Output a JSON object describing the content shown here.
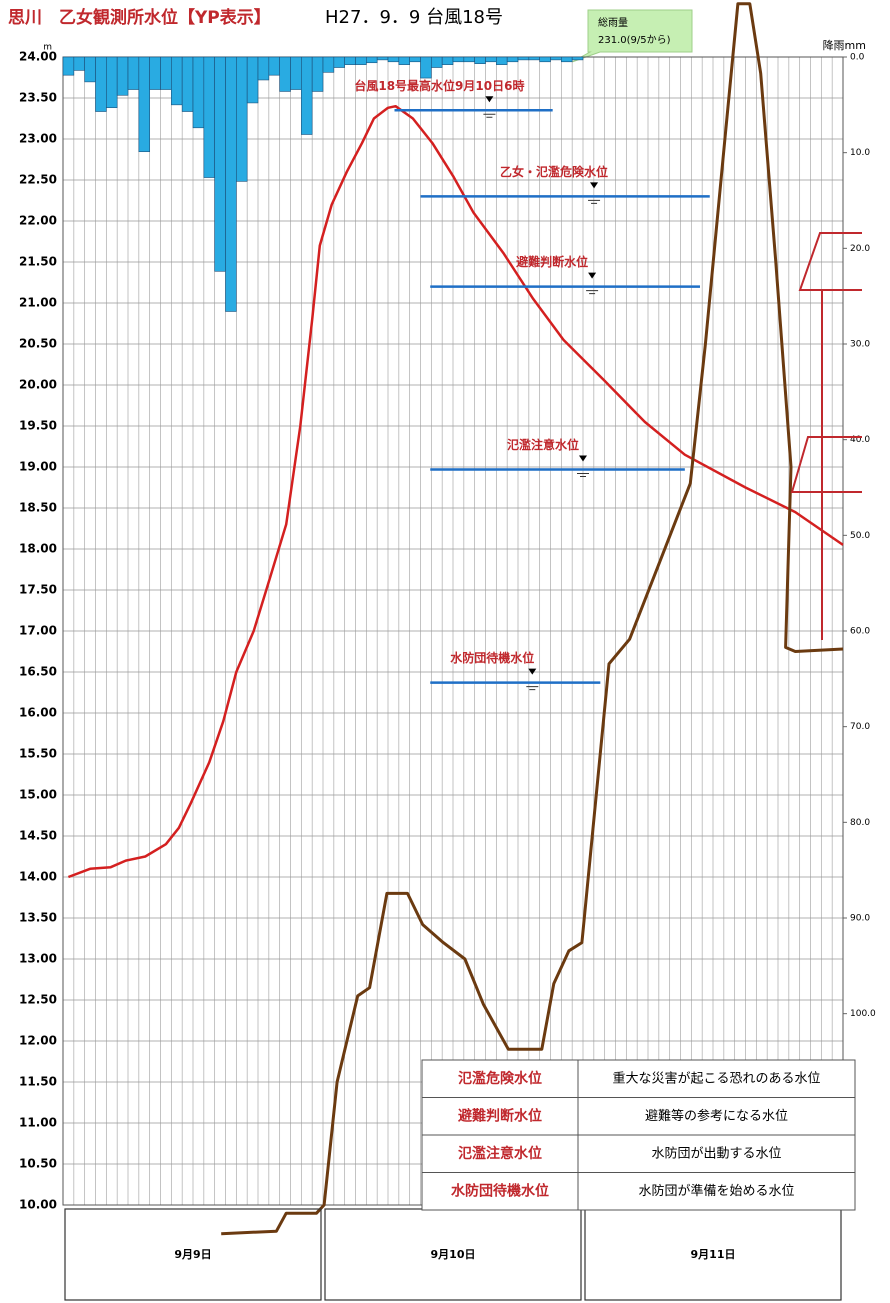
{
  "chart_data": {
    "type": "combo",
    "title": "思川　乙女観測所水位【YP表示】",
    "subtitle": "H27．9．9 台風18号",
    "y_unit": "m",
    "y2_label": "降雨mm",
    "rain_note": [
      "総雨量",
      "231.0(9/5から)"
    ],
    "xlim": [
      0,
      72
    ],
    "xticks": [
      0,
      1,
      2,
      3,
      4,
      5,
      6,
      7,
      8,
      9,
      10,
      11,
      12,
      13,
      14,
      15,
      16,
      17,
      18,
      19,
      20,
      21,
      22,
      23,
      24,
      25,
      26,
      27,
      28,
      29,
      30,
      31,
      32,
      33,
      34,
      35,
      36,
      37,
      38,
      39,
      40,
      41,
      42,
      43,
      44,
      45,
      46,
      47,
      48,
      49,
      50,
      51,
      52,
      53,
      54,
      55,
      56,
      57,
      58,
      59,
      60,
      61,
      62,
      63,
      64,
      65,
      66,
      67,
      68,
      69,
      70,
      71,
      72
    ],
    "ylim": [
      10,
      24
    ],
    "yticks": [
      {
        "value": 10,
        "label": "10.00"
      },
      {
        "value": 10.5,
        "label": "10.50"
      },
      {
        "value": 11,
        "label": "11.00"
      },
      {
        "value": 11.5,
        "label": "11.50"
      },
      {
        "value": 12,
        "label": "12.00"
      },
      {
        "value": 12.5,
        "label": "12.50"
      },
      {
        "value": 13,
        "label": "13.00"
      },
      {
        "value": 13.5,
        "label": "13.50"
      },
      {
        "value": 14,
        "label": "14.00"
      },
      {
        "value": 14.5,
        "label": "14.50"
      },
      {
        "value": 15,
        "label": "15.00"
      },
      {
        "value": 15.5,
        "label": "15.50"
      },
      {
        "value": 16,
        "label": "16.00"
      },
      {
        "value": 16.5,
        "label": "16.50"
      },
      {
        "value": 17,
        "label": "17.00"
      },
      {
        "value": 17.5,
        "label": "17.50"
      },
      {
        "value": 18,
        "label": "18.00"
      },
      {
        "value": 18.5,
        "label": "18.50"
      },
      {
        "value": 19,
        "label": "19.00"
      },
      {
        "value": 19.5,
        "label": "19.50"
      },
      {
        "value": 20,
        "label": "20.00"
      },
      {
        "value": 20.5,
        "label": "20.50"
      },
      {
        "value": 21,
        "label": "21.00"
      },
      {
        "value": 21.5,
        "label": "21.50"
      },
      {
        "value": 22,
        "label": "22.00"
      },
      {
        "value": 22.5,
        "label": "22.50"
      },
      {
        "value": 23,
        "label": "23.00"
      },
      {
        "value": 23.5,
        "label": "23.50"
      },
      {
        "value": 24,
        "label": "24.00"
      }
    ],
    "y2lim": [
      0,
      120
    ],
    "y2_inverted": true,
    "y2ticks": [
      {
        "value": 0,
        "label": "0.0"
      },
      {
        "value": 10,
        "label": "10.0"
      },
      {
        "value": 20,
        "label": "20.0"
      },
      {
        "value": 30,
        "label": "30.0"
      },
      {
        "value": 40,
        "label": "40.0"
      },
      {
        "value": 50,
        "label": "50.0"
      },
      {
        "value": 60,
        "label": "60.0"
      },
      {
        "value": 70,
        "label": "70.0"
      },
      {
        "value": 80,
        "label": "80.0"
      },
      {
        "value": 90,
        "label": "90.0"
      },
      {
        "value": 100,
        "label": "100.0"
      }
    ],
    "grid": true,
    "days": [
      {
        "label": "9月9日",
        "start": 0,
        "end": 24
      },
      {
        "label": "9月10日",
        "start": 24,
        "end": 48
      },
      {
        "label": "9月11日",
        "start": 48,
        "end": 72
      }
    ],
    "series": [
      {
        "kind": "bar",
        "axis": "y2",
        "color": "#29abe2",
        "x": [
          0,
          1,
          2,
          3,
          4,
          5,
          6,
          7,
          8,
          9,
          10,
          11,
          12,
          13,
          14,
          15,
          16,
          17,
          18,
          19,
          20,
          21,
          22,
          23,
          24,
          25,
          26,
          27,
          28,
          29,
          30,
          31,
          32,
          33,
          34,
          35,
          36,
          37,
          38,
          39,
          40,
          41,
          42,
          43,
          44,
          45,
          46,
          47
        ],
        "values": [
          1.9,
          1.4,
          2.6,
          5.7,
          5.3,
          4.0,
          3.4,
          9.9,
          3.4,
          3.4,
          5.0,
          5.7,
          7.4,
          12.6,
          22.4,
          26.6,
          13.0,
          4.8,
          2.4,
          1.9,
          3.6,
          3.4,
          8.1,
          3.6,
          1.6,
          1.1,
          0.8,
          0.8,
          0.6,
          0.3,
          0.5,
          0.8,
          0.5,
          2.2,
          1.1,
          0.8,
          0.5,
          0.5,
          0.7,
          0.5,
          0.8,
          0.5,
          0.3,
          0.3,
          0.5,
          0.3,
          0.5,
          0.3
        ]
      },
      {
        "kind": "line",
        "color": "#d42020",
        "width": 2.5,
        "x": [
          0.5,
          2.5,
          4.4,
          5.8,
          7.6,
          9.5,
          10.7,
          11.8,
          13.5,
          14.8,
          16,
          17.6,
          19,
          20.6,
          21.9,
          23,
          23.7,
          24.8,
          26.2,
          27.6,
          28.7,
          30,
          30.7,
          32.3,
          34.1,
          36,
          37.9,
          40.7,
          43.4,
          46.2,
          50,
          53.7,
          57.4,
          63,
          67.6,
          72
        ],
        "values": [
          14.0,
          14.1,
          14.12,
          14.2,
          14.25,
          14.4,
          14.6,
          14.9,
          15.4,
          15.9,
          16.5,
          17.0,
          17.6,
          18.3,
          19.5,
          20.8,
          21.7,
          22.2,
          22.6,
          22.95,
          23.25,
          23.38,
          23.4,
          23.25,
          22.95,
          22.55,
          22.1,
          21.6,
          21.05,
          20.55,
          20.05,
          19.55,
          19.15,
          18.75,
          18.45,
          18.05
        ]
      },
      {
        "kind": "line",
        "color": "#6b3a10",
        "width": 3,
        "x": [
          14.6,
          19.7,
          20.6,
          23.4,
          24.1,
          25.3,
          27.2,
          28.3,
          29.9,
          31.8,
          33.2,
          35.1,
          37.1,
          38.8,
          41.1,
          44.2,
          45.3,
          46.7,
          47.9,
          50.4,
          52.3,
          57.9,
          59.3,
          61.1,
          62.3,
          63.4,
          64.4,
          65.8,
          67.2,
          66.7,
          67.6,
          72
        ],
        "values": [
          9.65,
          9.68,
          9.9,
          9.9,
          10.0,
          11.5,
          12.55,
          12.65,
          13.8,
          13.8,
          13.42,
          13.2,
          13.0,
          12.45,
          11.9,
          11.9,
          12.7,
          13.1,
          13.2,
          16.6,
          16.9,
          18.8,
          20.5,
          23.0,
          24.65,
          24.65,
          23.8,
          21.5,
          19.0,
          16.8,
          16.75,
          16.78
        ]
      }
    ],
    "levels": [
      {
        "label": "台風18号最高水位9月10日6時",
        "value": 23.35,
        "x": [
          30.6,
          45.2
        ]
      },
      {
        "label": "乙女・氾濫危険水位",
        "value": 22.3,
        "x": [
          33,
          59.7
        ]
      },
      {
        "label": "避難判断水位",
        "value": 21.2,
        "x": [
          33.9,
          58.8
        ]
      },
      {
        "label": "氾濫注意水位",
        "value": 18.97,
        "x": [
          33.9,
          57.4
        ]
      },
      {
        "label": "水防団待機水位",
        "value": 16.37,
        "x": [
          33.9,
          49.6
        ]
      }
    ],
    "legend_table": [
      [
        "氾濫危険水位",
        "重大な災害が起こる恐れのある水位"
      ],
      [
        "避難判断水位",
        "避難等の参考になる水位"
      ],
      [
        "氾濫注意水位",
        "水防団が出動する水位"
      ],
      [
        "水防団待機水位",
        "水防団が準備を始める水位"
      ]
    ]
  }
}
